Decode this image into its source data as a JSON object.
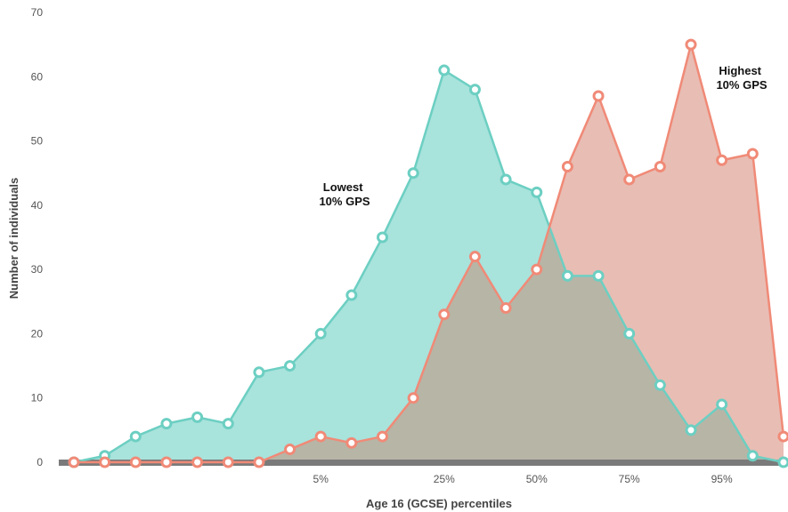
{
  "chart_data": {
    "type": "area",
    "xlabel": "Age 16 (GCSE) percentiles",
    "ylabel": "Number of individuals",
    "ylim": [
      0,
      70
    ],
    "yticks": [
      0,
      10,
      20,
      30,
      40,
      50,
      60,
      70
    ],
    "x": [
      1,
      2,
      3,
      4,
      5,
      6,
      7,
      8,
      9,
      10,
      11,
      12,
      13,
      14,
      15,
      16,
      17,
      18,
      19,
      20,
      21,
      22,
      23,
      24
    ],
    "xtick_labels": [
      {
        "x": 9,
        "label": "5%"
      },
      {
        "x": 13,
        "label": "25%"
      },
      {
        "x": 16,
        "label": "50%"
      },
      {
        "x": 19,
        "label": "75%"
      },
      {
        "x": 22,
        "label": "95%"
      }
    ],
    "grid": false,
    "series": [
      {
        "name": "Lowest 10% GPS",
        "color": "#6ccfc2",
        "fill": "#a8e3dc",
        "values": [
          0,
          1,
          4,
          6,
          7,
          6,
          14,
          15,
          20,
          26,
          35,
          45,
          61,
          58,
          44,
          42,
          29,
          29,
          20,
          12,
          5,
          9,
          1,
          0
        ]
      },
      {
        "name": "Highest 10% GPS",
        "color": "#f08a77",
        "fill": "#e8bdb4",
        "values": [
          0,
          0,
          0,
          0,
          0,
          0,
          0,
          2,
          4,
          3,
          4,
          10,
          23,
          32,
          24,
          30,
          46,
          57,
          44,
          46,
          65,
          47,
          48,
          4
        ]
      }
    ],
    "overlap_fill": "#b7b5a6",
    "annotations": [
      {
        "lines": [
          "Lowest",
          "10% GPS"
        ],
        "series": 0
      },
      {
        "lines": [
          "Highest",
          "10% GPS"
        ],
        "series": 1
      }
    ]
  }
}
